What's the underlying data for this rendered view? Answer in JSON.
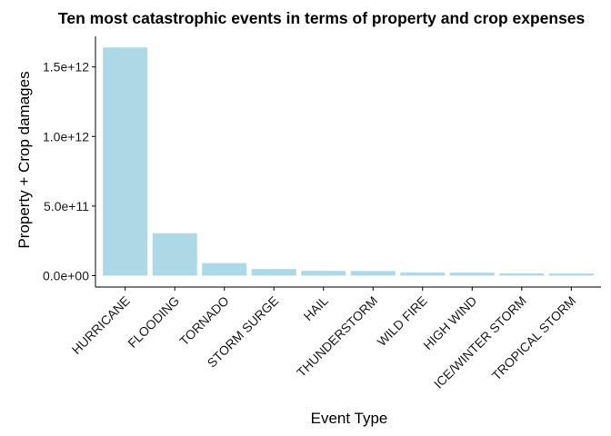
{
  "chart_data": {
    "type": "bar",
    "title": "Ten most catastrophic events in terms of property and crop expenses",
    "xlabel": "Event Type",
    "ylabel": "Property + Crop damages",
    "categories": [
      "HURRICANE",
      "FLOODING",
      "TORNADO",
      "STORM SURGE",
      "HAIL",
      "THUNDERSTORM",
      "WILD FIRE",
      "HIGH WIND",
      "ICE/WINTER STORM",
      "TROPICAL STORM"
    ],
    "values": [
      1640000000000.0,
      305000000000.0,
      90000000000.0,
      47000000000.0,
      34000000000.0,
      33000000000.0,
      22000000000.0,
      21000000000.0,
      16000000000.0,
      15000000000.0
    ],
    "y_ticks": [
      0,
      500000000000.0,
      1000000000000.0,
      1500000000000.0
    ],
    "y_tick_labels": [
      "0.0e+00",
      "5.0e+11",
      "1.0e+12",
      "1.5e+12"
    ],
    "ylim": [
      -82000000000.0,
      1720000000000.0
    ],
    "bar_color": "#add8e6",
    "grid": false,
    "legend": "none"
  }
}
